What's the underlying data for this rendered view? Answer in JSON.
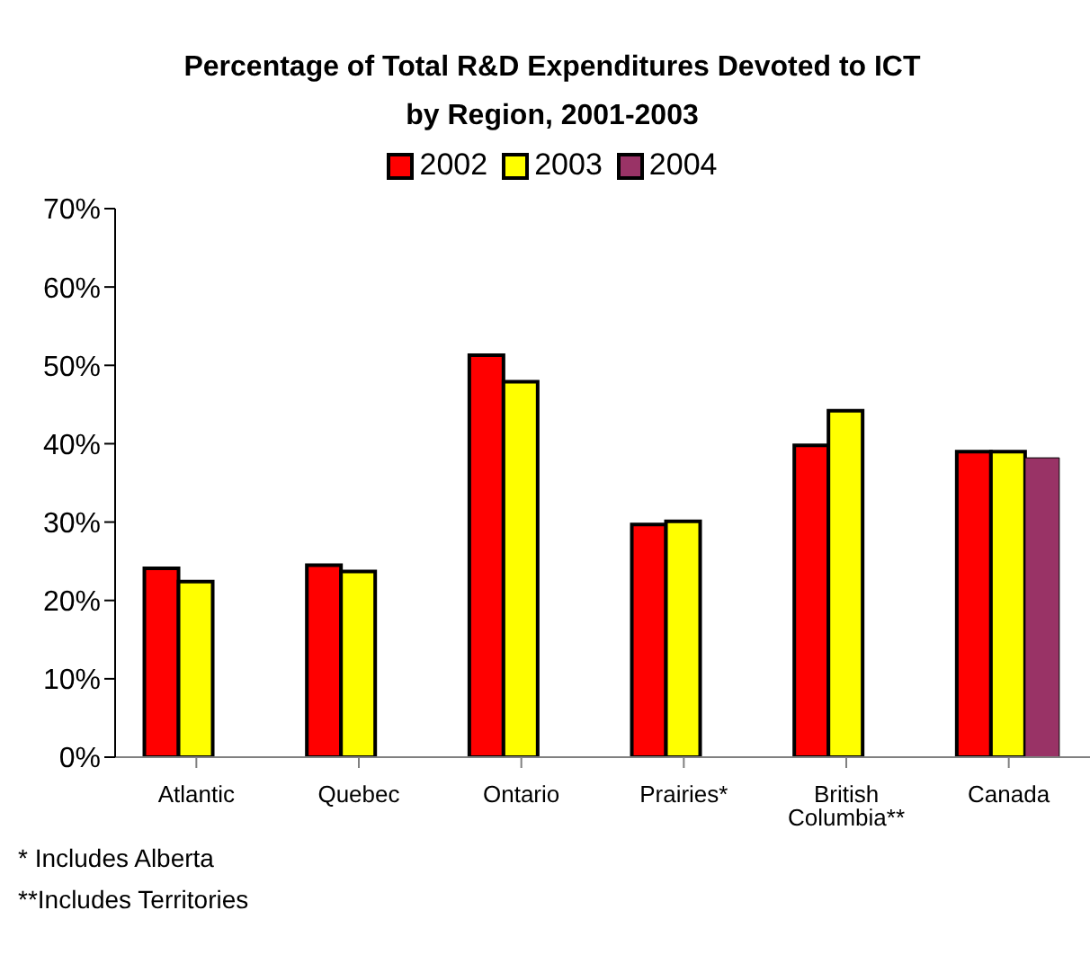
{
  "chart_data": {
    "type": "bar",
    "title": "Percentage of Total R&D Expenditures Devoted to ICT by Region, 2001-2003",
    "categories": [
      "Atlantic",
      "Quebec",
      "Ontario",
      "Prairies*",
      "British Columbia**",
      "Canada"
    ],
    "series": [
      {
        "name": "2002",
        "color": "#ff0000",
        "values": [
          24.1,
          24.5,
          51.3,
          29.7,
          39.8,
          39.0
        ]
      },
      {
        "name": "2003",
        "color": "#ffff00",
        "values": [
          22.4,
          23.7,
          47.9,
          30.1,
          44.2,
          39.0
        ]
      },
      {
        "name": "2004",
        "color": "#993366",
        "values": [
          null,
          null,
          null,
          null,
          null,
          38.2
        ]
      }
    ],
    "ylim": [
      0,
      70
    ],
    "yticks": [
      {
        "value": 0,
        "label": "0%"
      },
      {
        "value": 10,
        "label": "10%"
      },
      {
        "value": 20,
        "label": "20%"
      },
      {
        "value": 30,
        "label": "30%"
      },
      {
        "value": 40,
        "label": "40%"
      },
      {
        "value": 50,
        "label": "50%"
      },
      {
        "value": 60,
        "label": "60%"
      },
      {
        "value": 70,
        "label": "70%"
      }
    ],
    "grid": false,
    "legend": "top",
    "annotations": [
      "* Includes Alberta",
      "**Includes Territories"
    ]
  }
}
